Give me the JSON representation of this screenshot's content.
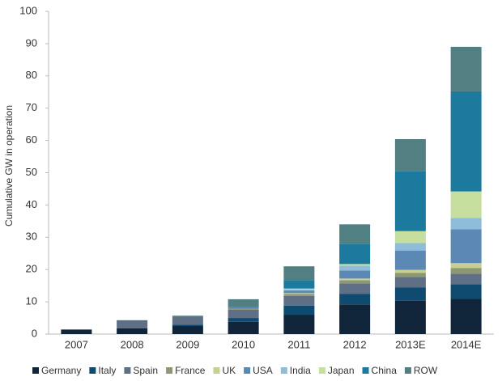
{
  "chart_data": {
    "type": "stacked_bar",
    "y_label": "Cumulative GW in operation",
    "categories": [
      "2007",
      "2008",
      "2009",
      "2010",
      "2011",
      "2012",
      "2013E",
      "2014E"
    ],
    "series": [
      {
        "name": "Germany",
        "color": "#10243a",
        "values": [
          1.3,
          1.8,
          2.5,
          3.8,
          6.0,
          9.2,
          10.3,
          11.0
        ]
      },
      {
        "name": "Italy",
        "color": "#0f4b70",
        "values": [
          0.1,
          0.1,
          0.4,
          1.2,
          2.8,
          3.3,
          4.2,
          4.4
        ]
      },
      {
        "name": "Spain",
        "color": "#5e6f86",
        "values": [
          0.1,
          2.4,
          2.5,
          2.6,
          3.0,
          3.2,
          3.2,
          3.3
        ]
      },
      {
        "name": "France",
        "color": "#8e9870",
        "values": [
          0,
          0,
          0,
          0.3,
          0.6,
          1.0,
          1.3,
          1.8
        ]
      },
      {
        "name": "UK",
        "color": "#c7d092",
        "values": [
          0,
          0,
          0,
          0,
          0.3,
          0.5,
          0.9,
          1.5
        ]
      },
      {
        "name": "USA",
        "color": "#5b88b5",
        "values": [
          0,
          0,
          0,
          0.4,
          0.8,
          2.5,
          6.0,
          10.5
        ]
      },
      {
        "name": "India",
        "color": "#8fbcd8",
        "values": [
          0,
          0,
          0,
          0,
          0.3,
          1.5,
          2.3,
          3.5
        ]
      },
      {
        "name": "Japan",
        "color": "#c6df9f",
        "values": [
          0,
          0,
          0,
          0,
          0.3,
          0.5,
          3.7,
          8.2
        ]
      },
      {
        "name": "China",
        "color": "#1b7a9e",
        "values": [
          0,
          0,
          0,
          0,
          2.6,
          6.3,
          18.5,
          31.0
        ]
      },
      {
        "name": "ROW",
        "color": "#527f82",
        "values": [
          0,
          0,
          0.3,
          2.5,
          4.3,
          6.0,
          10.0,
          13.8
        ]
      }
    ],
    "ylim": [
      0,
      100
    ],
    "yticks": [
      0,
      10,
      20,
      30,
      40,
      50,
      60,
      70,
      80,
      90,
      100
    ],
    "grid": false,
    "legend": "bottom"
  }
}
